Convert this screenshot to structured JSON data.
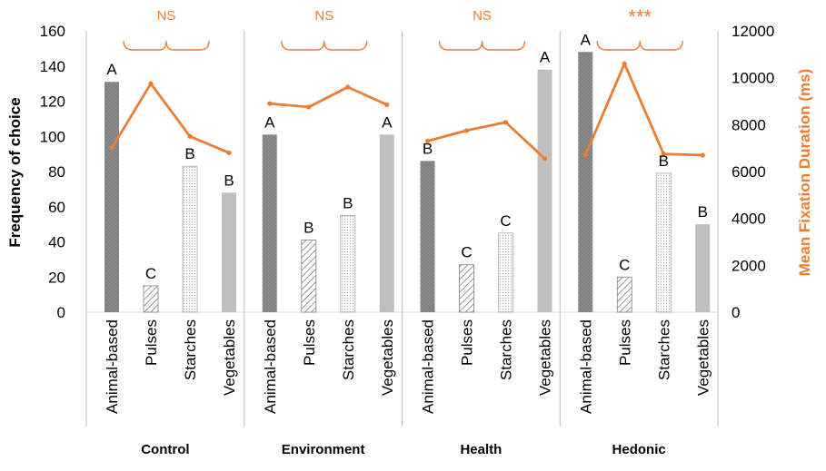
{
  "chart_data": {
    "type": "bar",
    "combo": "bar+line",
    "groups": [
      "Control",
      "Environment",
      "Health",
      "Hedonic"
    ],
    "categories": [
      "Animal-based",
      "Pulses",
      "Starches",
      "Vegetables"
    ],
    "ylabel": "Frequency of choice",
    "ylim": [
      0,
      160
    ],
    "yticks": [
      "0",
      "20",
      "40",
      "60",
      "80",
      "100",
      "120",
      "140",
      "160"
    ],
    "y2label": "Mean Fixation Duration (ms)",
    "y2lim": [
      0,
      12000
    ],
    "y2ticks": [
      "0",
      "2000",
      "4000",
      "6000",
      "8000",
      "10000",
      "12000"
    ],
    "bar_values": [
      [
        131,
        15,
        83,
        68
      ],
      [
        101,
        41,
        55,
        101
      ],
      [
        86,
        27,
        45,
        138
      ],
      [
        148,
        20,
        79,
        50
      ]
    ],
    "bar_letters": [
      [
        "A",
        "C",
        "B",
        "B"
      ],
      [
        "A",
        "B",
        "B",
        "A"
      ],
      [
        "B",
        "C",
        "C",
        "A"
      ],
      [
        "A",
        "C",
        "B",
        "B"
      ]
    ],
    "line_values": [
      [
        7000,
        9750,
        7500,
        6800
      ],
      [
        8900,
        8750,
        9600,
        8850
      ],
      [
        7300,
        7750,
        8100,
        6550
      ],
      [
        6700,
        10600,
        6750,
        6700
      ]
    ],
    "significance": [
      "NS",
      "NS",
      "NS",
      "***"
    ],
    "grid": false,
    "colors": {
      "line": "#ED7D31",
      "axis2_label": "#ED7D31",
      "bar_animal": "#7F7F7F",
      "bar_pulses_stroke": "#7F7F7F",
      "bar_starches_stroke": "#A6A6A6",
      "bar_vegetables": "#BFBFBF",
      "axis": "#BFBFBF"
    }
  }
}
